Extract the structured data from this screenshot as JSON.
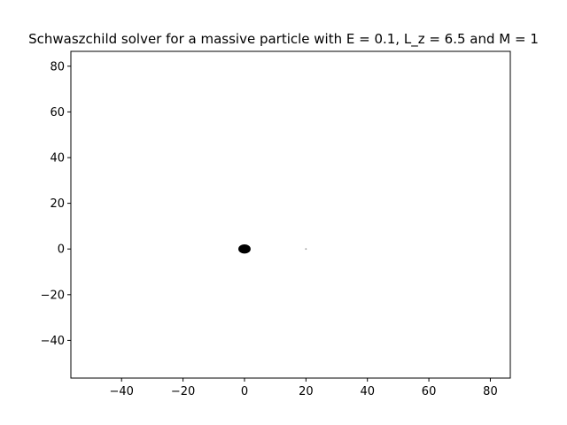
{
  "chart_data": {
    "type": "scatter",
    "title": "Schwaszchild solver for a massive particle with E = 0.1, L_z = 6.5 and M = 1",
    "xlabel": "",
    "ylabel": "",
    "xlim": [
      -56.5,
      86.5
    ],
    "ylim": [
      -56.5,
      86.5
    ],
    "x_ticks": [
      -40,
      -20,
      0,
      20,
      40,
      60,
      80
    ],
    "y_ticks": [
      -40,
      -20,
      0,
      20,
      40,
      60,
      80
    ],
    "x_tick_labels": [
      "−40",
      "−20",
      "0",
      "20",
      "40",
      "60",
      "80"
    ],
    "y_tick_labels": [
      "−40",
      "−20",
      "0",
      "20",
      "40",
      "60",
      "80"
    ],
    "grid": false,
    "series": [
      {
        "marker": "black-hole-disk",
        "points": [
          {
            "x": 0,
            "y": 0,
            "rx": 2,
            "ry": 2
          }
        ],
        "color": "#000000"
      },
      {
        "marker": "particle",
        "points": [
          {
            "x": 20,
            "y": 0
          }
        ],
        "color": "#999999"
      }
    ]
  }
}
